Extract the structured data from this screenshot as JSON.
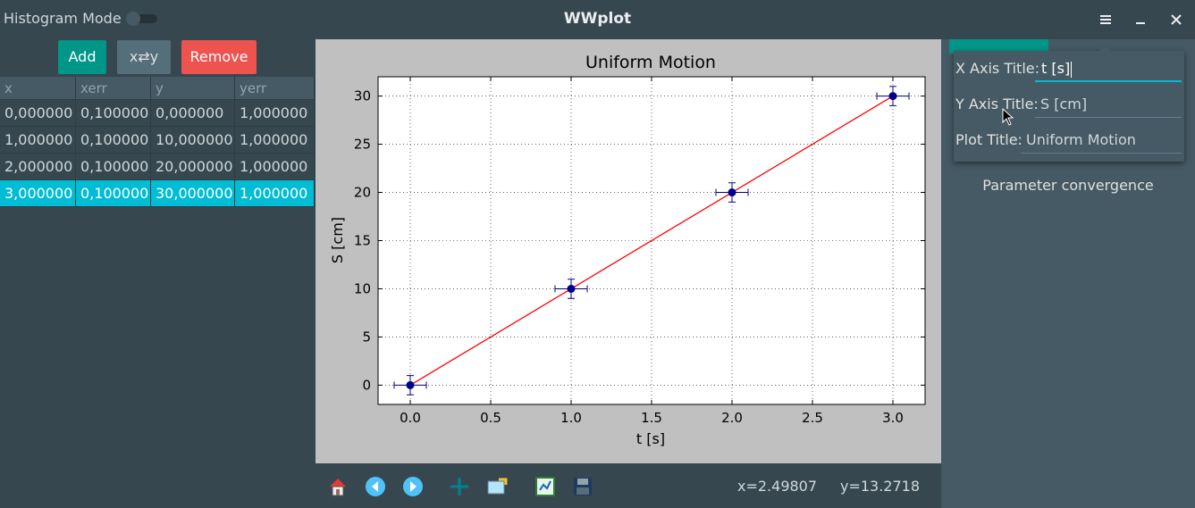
{
  "window": {
    "title": "WWplot",
    "histogram_label": "Histogram Mode",
    "menu_icon": "hamburger-menu-icon",
    "minimize_icon": "minimize-icon",
    "close_icon": "close-icon"
  },
  "toolbar": {
    "add_label": "Add",
    "swap_label": "x⇄y",
    "remove_label": "Remove"
  },
  "table": {
    "columns": [
      "x",
      "xerr",
      "y",
      "yerr"
    ],
    "rows": [
      [
        "0,000000",
        "0,100000",
        "0,000000",
        "1,000000"
      ],
      [
        "1,000000",
        "0,100000",
        "10,000000",
        "1,000000"
      ],
      [
        "2,000000",
        "0,100000",
        "20,000000",
        "1,000000"
      ],
      [
        "3,000000",
        "0,100000",
        "30,000000",
        "1,000000"
      ]
    ],
    "selected_row": 3
  },
  "chart_data": {
    "type": "scatter",
    "title": "Uniform Motion",
    "xlabel": "t [s]",
    "ylabel": "S [cm]",
    "xlim": [
      -0.2,
      3.2
    ],
    "ylim": [
      -2,
      32
    ],
    "xticks": [
      "0.0",
      "0.5",
      "1.0",
      "1.5",
      "2.0",
      "2.5",
      "3.0"
    ],
    "xtick_values": [
      0,
      0.5,
      1,
      1.5,
      2,
      2.5,
      3
    ],
    "yticks": [
      "0",
      "5",
      "10",
      "15",
      "20",
      "25",
      "30"
    ],
    "ytick_values": [
      0,
      5,
      10,
      15,
      20,
      25,
      30
    ],
    "grid": true,
    "series": [
      {
        "x": [
          0,
          1,
          2,
          3
        ],
        "y": [
          0,
          10,
          20,
          30
        ],
        "xerr": [
          0.1,
          0.1,
          0.1,
          0.1
        ],
        "yerr": [
          1,
          1,
          1,
          1
        ],
        "color": "#00008b"
      }
    ],
    "fit_line": {
      "x": [
        0,
        3
      ],
      "y": [
        0,
        30
      ],
      "color": "#ff0000"
    }
  },
  "plot_toolbar": {
    "icons": [
      "home-icon",
      "back-icon",
      "forward-icon",
      "pan-icon",
      "zoom-icon",
      "subplots-icon",
      "save-icon"
    ],
    "x_readout": "x=2.49807",
    "y_readout": "y=13.2718"
  },
  "popup": {
    "x_axis_label": "X Axis Title:",
    "x_axis_value": "t [s]",
    "y_axis_label": "Y Axis Title:",
    "y_axis_value": "S [cm]",
    "plot_title_label": "Plot Title:",
    "plot_title_value": "Uniform Motion"
  },
  "right_panel": {
    "param_label": "Parameter convergence"
  },
  "colors": {
    "accent": "#00bcd4",
    "add": "#009688",
    "remove": "#ef5350",
    "background": "#37474f"
  }
}
